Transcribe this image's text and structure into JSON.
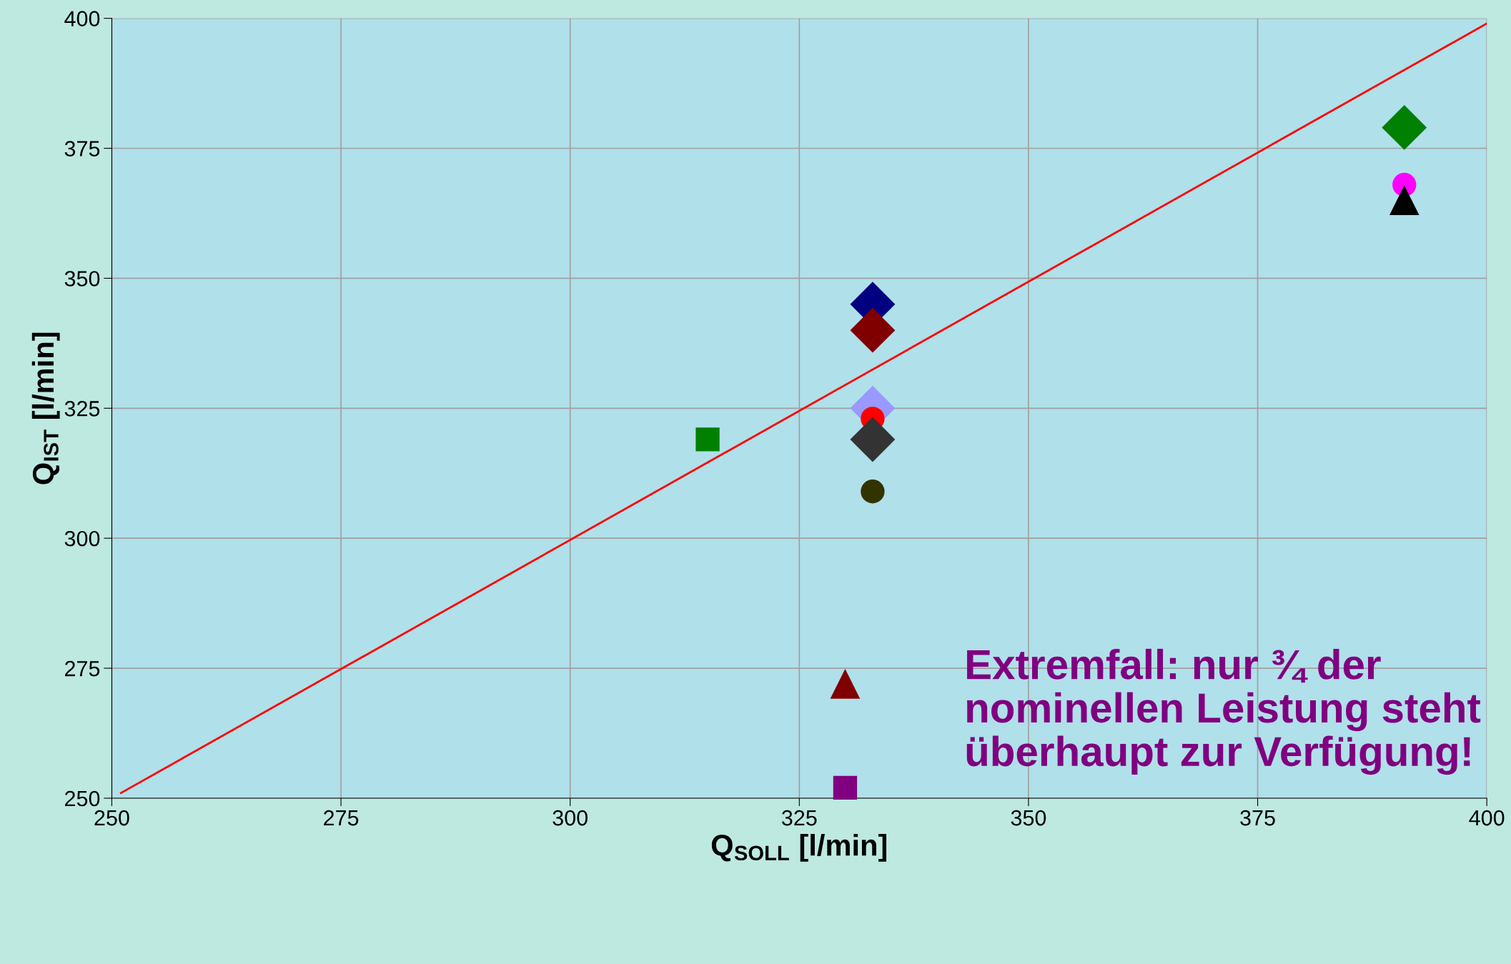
{
  "chart_data": {
    "type": "scatter",
    "xlabel": "Q$_{SOLL}$ [l/min]",
    "ylabel": "Q$_{IST}$ [l/min]",
    "xlim": [
      250,
      400
    ],
    "ylim": [
      250,
      400
    ],
    "xticks": [
      250,
      275,
      300,
      325,
      350,
      375,
      400
    ],
    "yticks": [
      250,
      275,
      300,
      325,
      350,
      375,
      400
    ],
    "grid": true,
    "legend": false,
    "series": [
      {
        "type": "line",
        "color": "#ff0000",
        "marker": "none",
        "line_style": "solid",
        "x": [
          251,
          400
        ],
        "values": [
          251,
          399
        ]
      },
      {
        "color": "#000080",
        "marker": "diamond",
        "x": [
          333
        ],
        "values": [
          345
        ]
      },
      {
        "color": "#800000",
        "marker": "diamond",
        "x": [
          333
        ],
        "values": [
          340
        ]
      },
      {
        "color": "#9999ff",
        "marker": "diamond",
        "x": [
          333
        ],
        "values": [
          325
        ]
      },
      {
        "color": "#ff0000",
        "marker": "circle",
        "x": [
          333
        ],
        "values": [
          323
        ]
      },
      {
        "color": "#333333",
        "marker": "diamond",
        "x": [
          333
        ],
        "values": [
          319
        ]
      },
      {
        "color": "#333300",
        "marker": "circle",
        "x": [
          333
        ],
        "values": [
          309
        ]
      },
      {
        "color": "#008000",
        "marker": "square",
        "x": [
          315
        ],
        "values": [
          319
        ]
      },
      {
        "color": "#008000",
        "marker": "diamond",
        "x": [
          391
        ],
        "values": [
          379
        ]
      },
      {
        "color": "#ff00ff",
        "marker": "circle",
        "x": [
          391
        ],
        "values": [
          368
        ]
      },
      {
        "color": "#000000",
        "marker": "triangle",
        "x": [
          391
        ],
        "values": [
          365
        ]
      },
      {
        "color": "#800000",
        "marker": "triangle",
        "x": [
          330
        ],
        "values": [
          272
        ]
      },
      {
        "color": "#800080",
        "marker": "square",
        "x": [
          330
        ],
        "values": [
          252
        ]
      }
    ],
    "annotations": [
      "Extremfall: nur ¾ der nominellen Leistung steht überhaupt zur Verfügung!"
    ]
  }
}
